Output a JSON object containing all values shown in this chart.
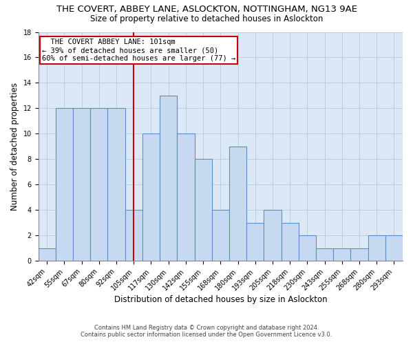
{
  "title": "THE COVERT, ABBEY LANE, ASLOCKTON, NOTTINGHAM, NG13 9AE",
  "subtitle": "Size of property relative to detached houses in Aslockton",
  "xlabel": "Distribution of detached houses by size in Aslockton",
  "ylabel": "Number of detached properties",
  "categories": [
    "42sqm",
    "55sqm",
    "67sqm",
    "80sqm",
    "92sqm",
    "105sqm",
    "117sqm",
    "130sqm",
    "142sqm",
    "155sqm",
    "168sqm",
    "180sqm",
    "193sqm",
    "205sqm",
    "218sqm",
    "230sqm",
    "243sqm",
    "255sqm",
    "268sqm",
    "280sqm",
    "293sqm"
  ],
  "values": [
    1,
    12,
    12,
    12,
    12,
    4,
    10,
    13,
    10,
    8,
    4,
    9,
    3,
    4,
    3,
    2,
    1,
    1,
    1,
    2,
    2
  ],
  "bar_color": "#c6d9f0",
  "bar_edge_color": "#5b8dc8",
  "vline_color": "#cc0000",
  "vline_pos": 5.0,
  "ylim": [
    0,
    18
  ],
  "yticks": [
    0,
    2,
    4,
    6,
    8,
    10,
    12,
    14,
    16,
    18
  ],
  "annotation_line1": "  THE COVERT ABBEY LANE: 101sqm",
  "annotation_line2": "← 39% of detached houses are smaller (50)",
  "annotation_line3": "60% of semi-detached houses are larger (77) →",
  "annotation_box_color": "#ffffff",
  "annotation_box_edge": "#cc0000",
  "footnote1": "Contains HM Land Registry data © Crown copyright and database right 2024.",
  "footnote2": "Contains public sector information licensed under the Open Government Licence v3.0.",
  "bg_color": "#ffffff",
  "plot_bg_color": "#dce8f5",
  "grid_color": "#b8cfe0",
  "title_fontsize": 9.5,
  "subtitle_fontsize": 8.5,
  "xlabel_fontsize": 8.5,
  "ylabel_fontsize": 8.5,
  "tick_fontsize": 7.0,
  "annot_fontsize": 7.5
}
